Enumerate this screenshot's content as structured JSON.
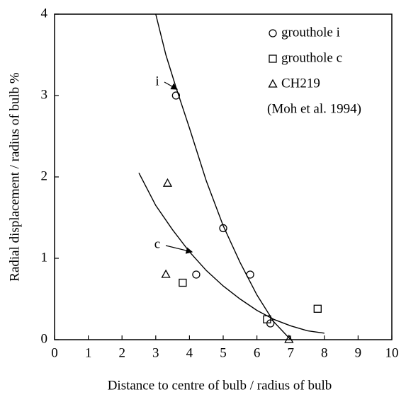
{
  "chart_data": {
    "type": "scatter",
    "xlabel": "Distance to centre of bulb / radius of bulb",
    "ylabel": "Radial displacement / radius of bulb  %",
    "xlim": [
      0,
      10
    ],
    "xticks": [
      0,
      1,
      2,
      3,
      4,
      5,
      6,
      7,
      8,
      9,
      10
    ],
    "ylim": [
      0,
      4
    ],
    "yticks": [
      0,
      1,
      2,
      3,
      4
    ],
    "color": "#000000",
    "legend": "top-right",
    "legend_note": "(Moh et al. 1994)",
    "series": [
      {
        "name": "grouthole i",
        "marker": "circle",
        "x": [
          3.6,
          5.0,
          5.8,
          4.2,
          6.4
        ],
        "values": [
          3.0,
          1.37,
          0.8,
          0.8,
          0.2
        ]
      },
      {
        "name": "grouthole c",
        "marker": "square",
        "x": [
          3.8,
          6.3,
          7.8
        ],
        "values": [
          0.7,
          0.25,
          0.38
        ]
      },
      {
        "name": "CH219",
        "marker": "triangle",
        "x": [
          3.35,
          3.3,
          6.95
        ],
        "values": [
          1.92,
          0.8,
          0.0
        ]
      }
    ],
    "curves": [
      {
        "name": "i",
        "x": [
          3.0,
          3.3,
          3.6,
          4.0,
          4.5,
          5.0,
          5.5,
          6.0,
          6.5,
          7.0
        ],
        "values": [
          4.0,
          3.5,
          3.1,
          2.6,
          1.95,
          1.4,
          0.95,
          0.55,
          0.22,
          0.0
        ]
      },
      {
        "name": "c",
        "x": [
          2.5,
          3.0,
          3.5,
          4.0,
          4.5,
          5.0,
          5.5,
          6.0,
          6.5,
          7.0,
          7.5,
          8.0
        ],
        "values": [
          2.05,
          1.65,
          1.35,
          1.08,
          0.85,
          0.66,
          0.5,
          0.36,
          0.25,
          0.17,
          0.11,
          0.08
        ]
      }
    ]
  }
}
